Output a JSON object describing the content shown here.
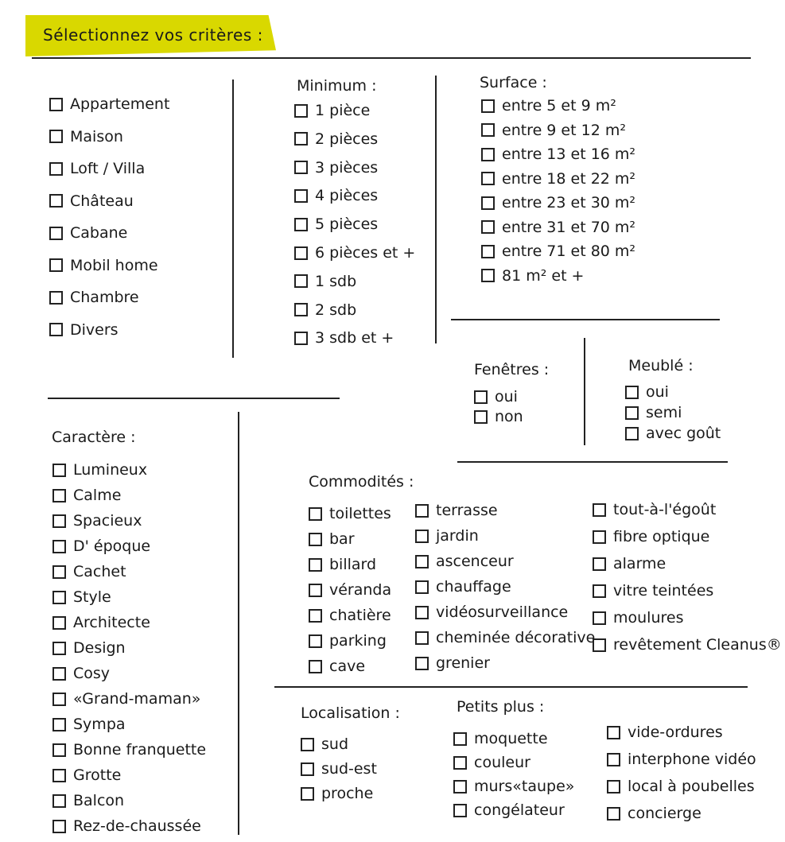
{
  "title": "Sélectionnez vos critères :",
  "accent_color": "#d9d800",
  "groups": {
    "type": {
      "heading": "",
      "items": [
        "Appartement",
        "Maison",
        "Loft / Villa",
        "Château",
        "Cabane",
        "Mobil home",
        "Chambre",
        "Divers"
      ]
    },
    "minimum": {
      "heading": "Minimum :",
      "items": [
        "1 pièce",
        "2 pièces",
        "3 pièces",
        "4 pièces",
        "5 pièces",
        "6 pièces et +",
        "1 sdb",
        "2 sdb",
        "3 sdb et +"
      ]
    },
    "surface": {
      "heading": "Surface :",
      "items": [
        "entre 5 et 9 m²",
        "entre 9 et 12 m²",
        "entre 13 et 16 m²",
        "entre 18 et 22 m²",
        "entre 23 et 30 m²",
        "entre 31 et 70 m²",
        "entre 71 et 80 m²",
        "81 m² et +"
      ]
    },
    "fenetres": {
      "heading": "Fenêtres :",
      "items": [
        "oui",
        "non"
      ]
    },
    "meuble": {
      "heading": "Meublé :",
      "items": [
        "oui",
        "semi",
        "avec goût"
      ]
    },
    "caractere": {
      "heading": "Caractère :",
      "items": [
        "Lumineux",
        "Calme",
        "Spacieux",
        "D' époque",
        "Cachet",
        "Style",
        "Architecte",
        "Design",
        "Cosy",
        "«Grand-maman»",
        "Sympa",
        "Bonne franquette",
        "Grotte",
        "Balcon",
        "Rez-de-chaussée"
      ]
    },
    "commodites": {
      "heading": "Commodités :",
      "items": []
    },
    "commodites_1": {
      "heading": "",
      "items": [
        "toilettes",
        "bar",
        "billard",
        "véranda",
        "chatière",
        "parking",
        "cave"
      ]
    },
    "commodites_2": {
      "heading": "",
      "items": [
        "terrasse",
        "jardin",
        "ascenceur",
        "chauffage",
        "vidéosurveillance",
        "cheminée décorative",
        "grenier"
      ]
    },
    "commodites_3": {
      "heading": "",
      "items": [
        "tout-à-l'égoût",
        "fibre optique",
        "alarme",
        "vitre teintées",
        "moulures",
        "revêtement Cleanus®"
      ]
    },
    "localisation": {
      "heading": "Localisation :",
      "items": [
        "sud",
        "sud-est",
        "proche"
      ]
    },
    "petits_plus": {
      "heading": "Petits plus :",
      "items": []
    },
    "petits_plus_1": {
      "heading": "",
      "items": [
        "moquette",
        "couleur",
        "murs«taupe»",
        "congélateur"
      ]
    },
    "petits_plus_2": {
      "heading": "",
      "items": [
        "vide-ordures",
        "interphone vidéo",
        "local à poubelles",
        "concierge"
      ]
    }
  }
}
